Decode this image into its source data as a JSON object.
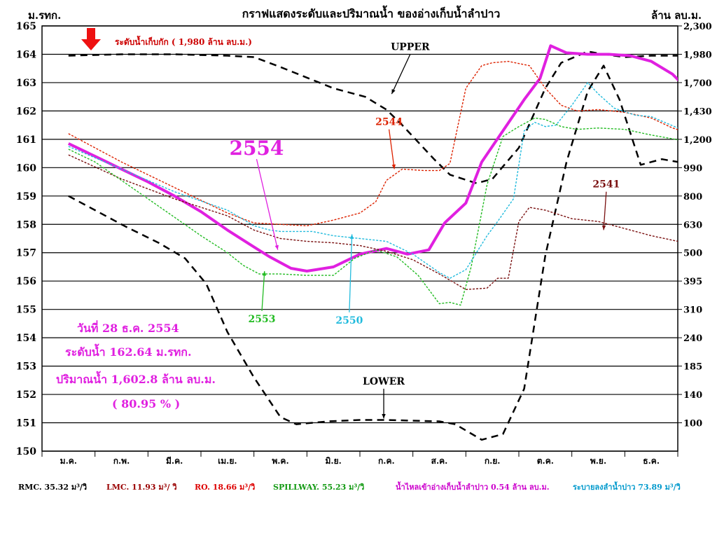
{
  "title": "กราฟแสดงระดับและปริมาณน้ำ ของอ่างเก็บน้ำลำปาว",
  "left_axis_label": "ม.รทก.",
  "right_axis_label": "ล้าน ลบ.ม.",
  "max_storage_label": "ระดับน้ำเก็บกัก ( 1,980 ล้าน ลบ.ม.)",
  "info": {
    "date": "วันที่  28  ธ.ค. 2554",
    "level": "ระดับน้ำ  162.64  ม.รทก.",
    "volume": "ปริมาณน้ำ  1,602.8  ล้าน ลบ.ม.",
    "percent": "(  80.95 % )"
  },
  "footer": {
    "rmc": "RMC.  35.32  ม³/วิ",
    "lmc": "LMC.  11.93  ม³/ วิ",
    "ro": "RO.  18.66  ม³/วิ",
    "spillway": "SPILLWAY.  55.23  ม³/วิ",
    "inflow": "น้ำไหลเข้าอ่างเก็บน้ำลำปาว 0.54  ล้าน ลบ.ม.",
    "release": "ระบายลงลำน้ำปาว  73.89  ม³/วิ"
  },
  "colors": {
    "s2554": "#e020e0",
    "s2544": "#dd2200",
    "s2541": "#7a1010",
    "s2553": "#22bb22",
    "s2550": "#22bbdd",
    "rule": "#000000",
    "footer_rmc": "#000000",
    "footer_lmc": "#990000",
    "footer_ro": "#dd0000",
    "footer_spill": "#119911",
    "footer_inflow": "#cc00cc",
    "footer_release": "#0099cc",
    "arrow": "#ee1111"
  },
  "icons": {
    "max_level_marker": "red-down-arrow"
  },
  "chart_data": {
    "type": "line",
    "x_unit": "month (Jan=0 … Dec=11)",
    "categories": [
      "ม.ค.",
      "ก.พ.",
      "มี.ค.",
      "เม.ย.",
      "พ.ค.",
      "มิ.ย.",
      "ก.ค.",
      "ส.ค.",
      "ก.ย.",
      "ต.ค.",
      "พ.ย.",
      "ธ.ค."
    ],
    "ylim": [
      150,
      165
    ],
    "yticks": [
      150,
      151,
      152,
      153,
      154,
      155,
      156,
      157,
      158,
      159,
      160,
      161,
      162,
      163,
      164,
      165
    ],
    "right_ticks": [
      {
        "level": 164,
        "label": "1,980"
      },
      {
        "level": 163,
        "label": "1,700"
      },
      {
        "level": 162,
        "label": "1,430"
      },
      {
        "level": 161,
        "label": "1,200"
      },
      {
        "level": 160,
        "label": "990"
      },
      {
        "level": 159,
        "label": "800"
      },
      {
        "level": 158,
        "label": "630"
      },
      {
        "level": 157,
        "label": "500"
      },
      {
        "level": 156,
        "label": "395"
      },
      {
        "level": 155,
        "label": "310"
      },
      {
        "level": 154,
        "label": "240"
      },
      {
        "level": 153,
        "label": "185"
      },
      {
        "level": 152,
        "label": "140"
      },
      {
        "level": 151,
        "label": "100"
      },
      {
        "level": 165,
        "label": "2,300"
      }
    ],
    "series": [
      {
        "name": "UPPER",
        "style": "dashed-black",
        "x": [
          0,
          1,
          2,
          3,
          3.5,
          4,
          5,
          5.6,
          6,
          6.3,
          6.9,
          7.2,
          7.7,
          8,
          8.5,
          9,
          9.3,
          9.8,
          10.1,
          10.5,
          11,
          11.5
        ],
        "y": [
          163.95,
          164,
          164,
          163.95,
          163.9,
          163.55,
          162.8,
          162.5,
          162.05,
          161.5,
          160.3,
          159.75,
          159.45,
          159.6,
          160.7,
          162.8,
          163.7,
          164.1,
          164,
          163.9,
          163.95,
          163.95
        ]
      },
      {
        "name": "LOWER",
        "style": "dashed-black",
        "x": [
          0,
          1.1,
          1.7,
          2.2,
          2.6,
          3,
          3.5,
          4,
          4.3,
          4.9,
          5.5,
          6,
          7,
          7.3,
          7.8,
          8.2,
          8.6,
          9,
          9.4,
          9.8,
          10.1,
          10.4,
          10.8,
          11.2,
          11.5
        ],
        "y": [
          159,
          157.9,
          157.35,
          156.8,
          155.9,
          154.2,
          152.6,
          151.2,
          150.95,
          151.05,
          151.1,
          151.1,
          151.05,
          150.95,
          150.4,
          150.6,
          152.2,
          156.9,
          160.2,
          162.7,
          163.6,
          162.4,
          160.1,
          160.3,
          160.2
        ]
      },
      {
        "name": "2554",
        "color": "s2554",
        "width": 4,
        "x": [
          0,
          0.5,
          1,
          1.5,
          2,
          2.5,
          3,
          3.5,
          3.8,
          4.2,
          4.5,
          5,
          5.5,
          6,
          6.4,
          6.8,
          7.1,
          7.5,
          7.8,
          8.2,
          8.6,
          8.9,
          9.1,
          9.4,
          9.8,
          10.2,
          10.6,
          11,
          11.4,
          11.75
        ],
        "y": [
          160.85,
          160.4,
          159.95,
          159.5,
          159,
          158.45,
          157.8,
          157.2,
          156.85,
          156.45,
          156.35,
          156.5,
          156.95,
          157.15,
          156.95,
          157.1,
          158.05,
          158.75,
          160.2,
          161.3,
          162.4,
          163.15,
          164.3,
          164.05,
          164,
          164,
          163.95,
          163.75,
          163.3,
          162.64
        ]
      },
      {
        "name": "2544",
        "color": "s2544",
        "x": [
          0,
          1,
          2,
          3,
          3.5,
          4,
          4.5,
          5,
          5.5,
          5.8,
          6,
          6.3,
          6.7,
          7,
          7.2,
          7.5,
          7.8,
          8,
          8.3,
          8.7,
          9,
          9.3,
          9.6,
          10,
          10.5,
          11,
          11.4,
          11.75
        ],
        "y": [
          161.2,
          160.2,
          159.3,
          158.4,
          158.05,
          158,
          157.95,
          158.15,
          158.4,
          158.8,
          159.55,
          159.95,
          159.9,
          159.9,
          160.15,
          162.8,
          163.6,
          163.7,
          163.75,
          163.6,
          162.8,
          162.2,
          162,
          162.05,
          161.95,
          161.75,
          161.4,
          161.2
        ]
      },
      {
        "name": "2541",
        "color": "s2541",
        "x": [
          0,
          1,
          2,
          3,
          3.5,
          4,
          4.5,
          5,
          5.5,
          6,
          6.5,
          7,
          7.5,
          7.9,
          8.1,
          8.3,
          8.5,
          8.7,
          9,
          9.5,
          10,
          10.5,
          11,
          11.5,
          11.75
        ],
        "y": [
          160.45,
          159.6,
          158.9,
          158.3,
          157.8,
          157.5,
          157.4,
          157.35,
          157.25,
          157.05,
          156.75,
          156.25,
          155.7,
          155.75,
          156.1,
          156.1,
          158.1,
          158.6,
          158.5,
          158.2,
          158.1,
          157.85,
          157.6,
          157.4,
          157.35
        ]
      },
      {
        "name": "2553",
        "color": "s2553",
        "x": [
          0,
          0.5,
          1,
          2,
          2.5,
          3,
          3.3,
          3.6,
          4,
          4.5,
          5,
          5.4,
          5.8,
          6.2,
          6.6,
          6.8,
          7,
          7.2,
          7.4,
          7.6,
          7.9,
          8.2,
          8.5,
          8.8,
          9,
          9.3,
          9.6,
          10,
          10.5,
          11,
          11.75
        ],
        "y": [
          160.65,
          160.2,
          159.55,
          158.25,
          157.6,
          157,
          156.55,
          156.25,
          156.25,
          156.2,
          156.2,
          156.8,
          157.1,
          156.85,
          156.2,
          155.7,
          155.2,
          155.25,
          155.15,
          156.5,
          159.4,
          161.1,
          161.45,
          161.75,
          161.7,
          161.45,
          161.35,
          161.4,
          161.35,
          161.15,
          160.9
        ]
      },
      {
        "name": "2550",
        "color": "s2550",
        "x": [
          0,
          1,
          2,
          3,
          3.5,
          3.8,
          4,
          4.6,
          5,
          5.5,
          6,
          6.5,
          7,
          7.2,
          7.5,
          7.9,
          8.1,
          8.4,
          8.6,
          8.8,
          9,
          9.2,
          9.5,
          9.8,
          10,
          10.3,
          10.7,
          11,
          11.5,
          11.75
        ],
        "y": [
          160.75,
          159.95,
          159.15,
          158.5,
          157.95,
          157.8,
          157.75,
          157.75,
          157.6,
          157.5,
          157.4,
          156.95,
          156.3,
          156.1,
          156.4,
          157.6,
          158.1,
          158.9,
          161.3,
          161.6,
          161.45,
          161.5,
          162.2,
          163,
          162.6,
          162.1,
          161.85,
          161.8,
          161.4,
          161.2
        ]
      }
    ],
    "annotations": [
      {
        "text": "UPPER",
        "tx": 6.45,
        "ty": 164.15,
        "ax": 6.1,
        "ay": 162.6,
        "color": "#000000",
        "size": 14
      },
      {
        "text": "2544",
        "tx": 6.05,
        "ty": 161.5,
        "ax": 6.15,
        "ay": 159.95,
        "color": "s2544",
        "size": 14
      },
      {
        "text": "2554",
        "tx": 3.55,
        "ty": 160.45,
        "ax": 3.95,
        "ay": 157.1,
        "color": "s2554",
        "size": 28
      },
      {
        "text": "2541",
        "tx": 10.15,
        "ty": 159.3,
        "ax": 10.1,
        "ay": 157.8,
        "color": "s2541",
        "size": 14
      },
      {
        "text": "2553",
        "tx": 3.65,
        "ty": 154.55,
        "ax": 3.7,
        "ay": 156.35,
        "color": "s2553",
        "size": 14
      },
      {
        "text": "2550",
        "tx": 5.3,
        "ty": 154.5,
        "ax": 5.35,
        "ay": 157.65,
        "color": "s2550",
        "size": 14
      },
      {
        "text": "LOWER",
        "tx": 5.95,
        "ty": 152.35,
        "ax": 5.95,
        "ay": 151.15,
        "color": "#000000",
        "size": 14
      }
    ]
  }
}
